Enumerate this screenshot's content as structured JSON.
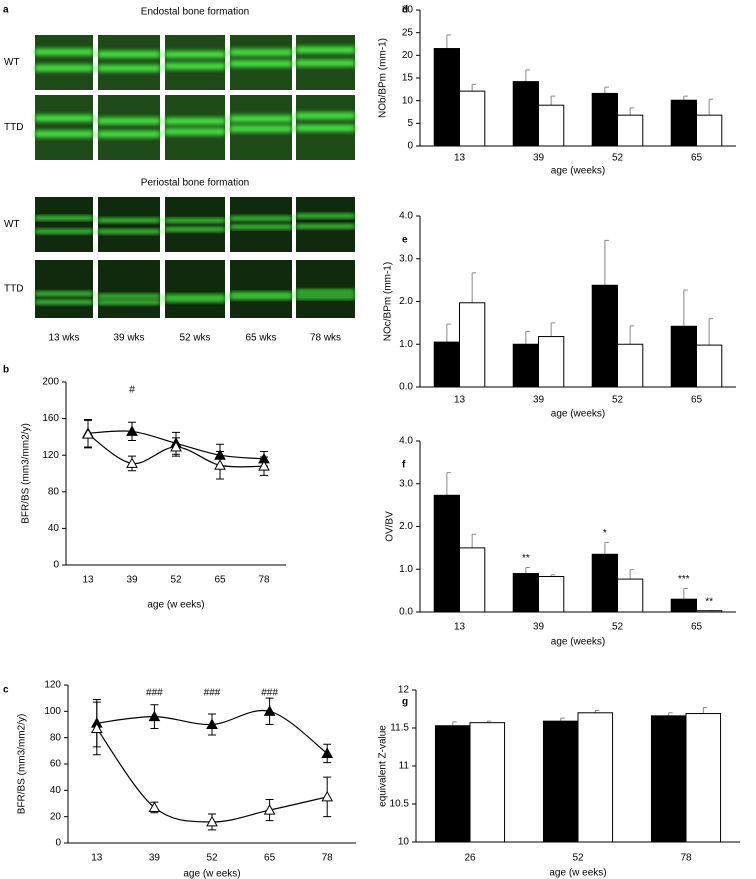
{
  "panel_a": {
    "panel": "a",
    "sections": [
      {
        "title": "Endostal bone formation",
        "rows": [
          "WT",
          "TTD"
        ]
      },
      {
        "title": "Periostal bone formation",
        "rows": [
          "WT",
          "TTD"
        ]
      }
    ],
    "columns": [
      "13 wks",
      "39 wks",
      "52 wks",
      "65 wks",
      "78 wks"
    ]
  },
  "chart_data": [
    {
      "type": "line",
      "panel": "b",
      "y_label": "BFR/BS (mm3/mm2/y)",
      "x_label": "age (w eeks)",
      "categories": [
        "13",
        "39",
        "52",
        "65",
        "78"
      ],
      "ylim": [
        0,
        200
      ],
      "yticks": [
        0,
        40,
        80,
        120,
        160,
        200
      ],
      "annotations": [
        null,
        "#",
        null,
        null,
        null
      ],
      "series": [
        {
          "color": "#000000",
          "fill": "#000000",
          "values": [
            144,
            146,
            133,
            120,
            116
          ],
          "errors": [
            15,
            10,
            12,
            12,
            8
          ]
        },
        {
          "color": "#000000",
          "fill": "#ffffff",
          "values": [
            143,
            111,
            129,
            109,
            108
          ],
          "errors": [
            15,
            8,
            10,
            15,
            10
          ]
        }
      ]
    },
    {
      "type": "line",
      "panel": "c",
      "y_label": "BFR/BS (mm3/mm2/y)",
      "x_label": "age (w eeks)",
      "categories": [
        "13",
        "39",
        "52",
        "65",
        "78"
      ],
      "ylim": [
        0,
        120
      ],
      "yticks": [
        0,
        20,
        40,
        60,
        80,
        100,
        120
      ],
      "annotations": [
        null,
        "###",
        "###",
        "###",
        null
      ],
      "series": [
        {
          "color": "#000000",
          "fill": "#000000",
          "values": [
            91,
            96,
            90,
            100,
            68
          ],
          "errors": [
            18,
            9,
            8,
            10,
            7
          ]
        },
        {
          "color": "#000000",
          "fill": "#ffffff",
          "values": [
            87,
            27,
            16,
            25,
            35
          ],
          "errors": [
            20,
            4,
            6,
            8,
            15
          ]
        }
      ]
    },
    {
      "type": "bar",
      "panel": "d",
      "y_label": "NOb/BPm (mm-1)",
      "x_label": "age (weeks)",
      "categories": [
        "13",
        "39",
        "52",
        "65"
      ],
      "ylim": [
        0,
        30
      ],
      "yticks": [
        0,
        5,
        10,
        15,
        20,
        25,
        30
      ],
      "series": [
        {
          "color": "#000000",
          "values": [
            21.5,
            14.2,
            11.6,
            10.1
          ],
          "errors": [
            3.0,
            2.6,
            1.4,
            0.9
          ]
        },
        {
          "color": "#ffffff",
          "values": [
            12.1,
            9.0,
            6.8,
            6.8
          ],
          "errors": [
            1.5,
            2.0,
            1.6,
            3.5
          ]
        }
      ]
    },
    {
      "type": "bar",
      "panel": "e",
      "y_label": "NOc/BPm (mm-1)",
      "x_label": "age (weeks)",
      "categories": [
        "13",
        "39",
        "52",
        "65"
      ],
      "ylim": [
        0,
        4
      ],
      "yticks": [
        {
          "value": 0,
          "label": "0.0"
        },
        {
          "value": 1,
          "label": "1.0"
        },
        {
          "value": 2,
          "label": "2.0"
        },
        {
          "value": 3,
          "label": "3.0"
        },
        {
          "value": 4,
          "label": "4.0"
        }
      ],
      "series": [
        {
          "color": "#000000",
          "values": [
            1.05,
            1.0,
            2.38,
            1.42
          ],
          "errors": [
            0.42,
            0.3,
            1.05,
            0.85
          ]
        },
        {
          "color": "#ffffff",
          "values": [
            1.97,
            1.18,
            1.0,
            0.98
          ],
          "errors": [
            0.7,
            0.32,
            0.43,
            0.62
          ]
        }
      ]
    },
    {
      "type": "bar",
      "panel": "f",
      "y_label": "OV/BV",
      "x_label": "age (weeks)",
      "categories": [
        "13",
        "39",
        "52",
        "65"
      ],
      "ylim": [
        0,
        4
      ],
      "yticks": [
        {
          "value": 0,
          "label": "0.0"
        },
        {
          "value": 1,
          "label": "1.0"
        },
        {
          "value": 2,
          "label": "2.0"
        },
        {
          "value": 3,
          "label": "3.0"
        },
        {
          "value": 4,
          "label": "4.0"
        }
      ],
      "series": [
        {
          "color": "#000000",
          "values": [
            2.73,
            0.9,
            1.35,
            0.3
          ],
          "errors": [
            0.53,
            0.14,
            0.28,
            0.25
          ],
          "annotations": [
            null,
            "**",
            "*",
            "***"
          ]
        },
        {
          "color": "#ffffff",
          "values": [
            1.5,
            0.83,
            0.77,
            0.03
          ],
          "errors": [
            0.32,
            0.04,
            0.22,
            0
          ],
          "annotations": [
            null,
            null,
            null,
            "**"
          ]
        }
      ]
    },
    {
      "type": "bar",
      "panel": "g",
      "y_label": "equivalent Z-value",
      "x_label": "age (w eeks)",
      "categories": [
        "26",
        "52",
        "78"
      ],
      "ylim": [
        10,
        12
      ],
      "yticks": [
        10,
        10.5,
        11,
        11.5,
        12
      ],
      "series": [
        {
          "color": "#000000",
          "values": [
            11.53,
            11.59,
            11.66
          ],
          "errors": [
            0.05,
            0.04,
            0.04
          ]
        },
        {
          "color": "#ffffff",
          "values": [
            11.57,
            11.7,
            11.69
          ],
          "errors": [
            0.02,
            0.03,
            0.08
          ]
        }
      ]
    }
  ]
}
